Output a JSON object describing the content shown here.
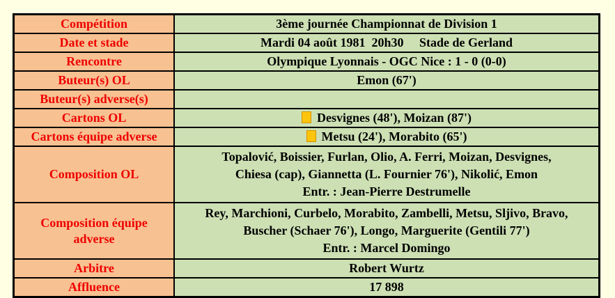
{
  "page": {
    "background_color": "#ffffe3"
  },
  "table": {
    "label_bg_color": "#f8c191",
    "value_bg_color": "#cde0b4",
    "label_text_color": "#ee0000",
    "value_text_color": "#000000",
    "border_color": "#000000",
    "yellow_card_color": "#ffc40c"
  },
  "rows": {
    "competition": {
      "label": "Compétition",
      "value": "3ème journée Championnat de Division 1"
    },
    "date_stade": {
      "label": "Date et stade",
      "value": "Mardi 04 août 1981  20h30     Stade de Gerland"
    },
    "rencontre": {
      "label": "Rencontre",
      "value": "Olympique Lyonnais - OGC Nice : 1 - 0 (0-0)"
    },
    "buteurs_ol": {
      "label": "Buteur(s) OL",
      "value": "Emon (67')"
    },
    "buteurs_adverse": {
      "label": "Buteur(s) adverse(s)",
      "value": ""
    },
    "cartons_ol": {
      "label": "Cartons OL",
      "icon": "yellow-card",
      "value": "Desvignes (48'), Moizan (87')"
    },
    "cartons_adverse": {
      "label": "Cartons équipe adverse",
      "icon": "yellow-card",
      "value": "Metsu (24'), Morabito (65')"
    },
    "composition_ol": {
      "label": "Composition OL",
      "lines": [
        "Topalović, Boissier, Furlan, Olio, A. Ferri, Moizan, Desvignes,",
        "Chiesa (cap), Giannetta (L. Fournier 76'), Nikolić, Emon",
        "Entr. : Jean-Pierre Destrumelle"
      ]
    },
    "composition_adverse": {
      "label": "Composition équipe adverse",
      "lines": [
        "Rey, Marchioni, Curbelo, Morabito, Zambelli, Metsu, Sljivo, Bravo,",
        "Buscher (Schaer 76'), Longo, Marguerite (Gentili 77')",
        "Entr. : Marcel Domingo"
      ]
    },
    "arbitre": {
      "label": "Arbitre",
      "value": "Robert Wurtz"
    },
    "affluence": {
      "label": "Affluence",
      "value": "17 898"
    }
  }
}
